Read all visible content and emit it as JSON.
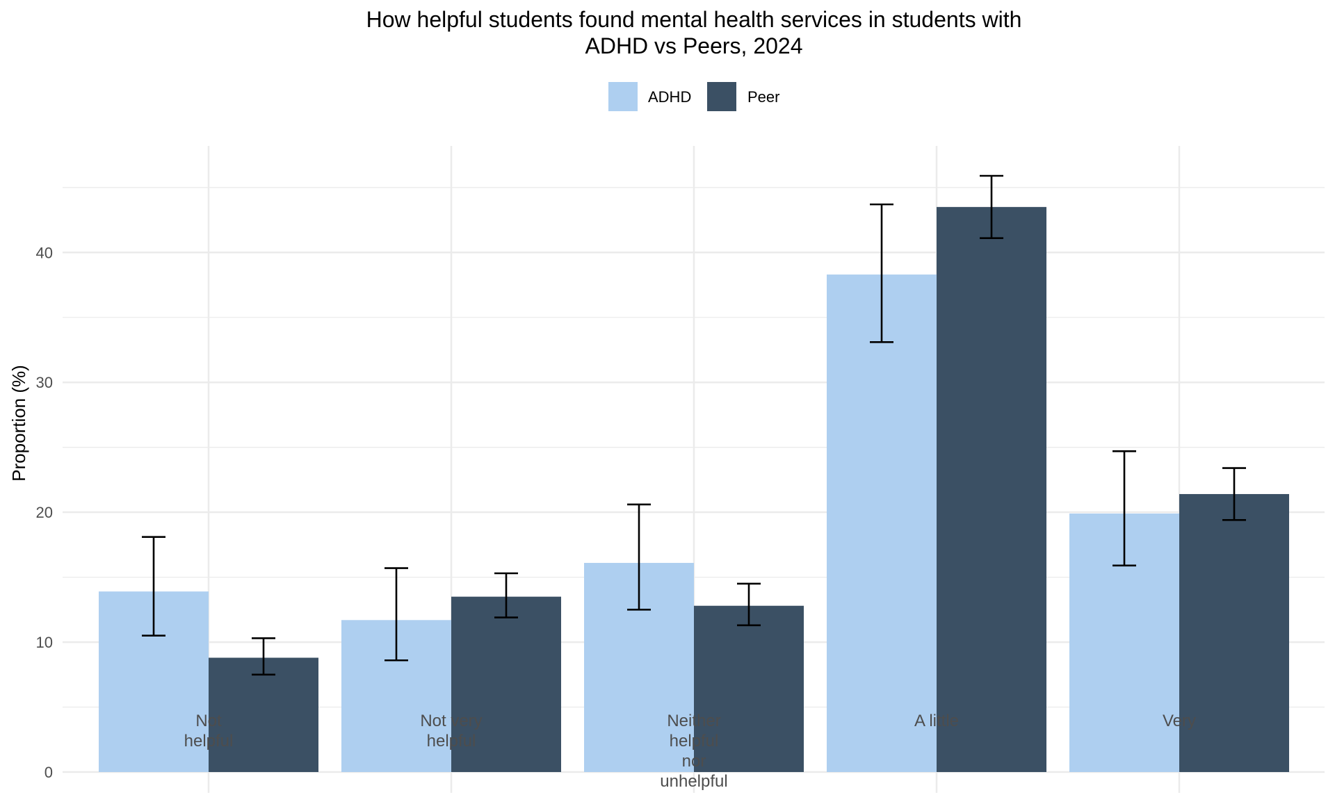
{
  "chart_data": {
    "type": "bar",
    "title": [
      "How helpful students found mental health services in students with",
      "ADHD vs Peers, 2024"
    ],
    "xlabel": "",
    "ylabel": "Proportion (%)",
    "ylim": [
      0,
      48.2
    ],
    "yticks": [
      0,
      10,
      20,
      30,
      40
    ],
    "grid": true,
    "legend_position": "top",
    "categories": [
      [
        "Not",
        "helpful"
      ],
      [
        "Not very",
        "helpful"
      ],
      [
        "Neither",
        "helpful",
        "nor",
        "unhelpful"
      ],
      [
        "A little"
      ],
      [
        "Very"
      ]
    ],
    "series": [
      {
        "name": "ADHD",
        "color": "#AECFF0",
        "values": [
          13.9,
          11.7,
          16.1,
          38.3,
          19.9
        ],
        "lower": [
          10.5,
          8.6,
          12.5,
          33.1,
          15.9
        ],
        "upper": [
          18.1,
          15.7,
          20.6,
          43.7,
          24.7
        ]
      },
      {
        "name": "Peer",
        "color": "#3B5064",
        "values": [
          8.8,
          13.5,
          12.8,
          43.5,
          21.4
        ],
        "lower": [
          7.5,
          11.9,
          11.3,
          41.1,
          19.4
        ],
        "upper": [
          10.3,
          15.3,
          14.5,
          45.9,
          23.4
        ]
      }
    ]
  }
}
